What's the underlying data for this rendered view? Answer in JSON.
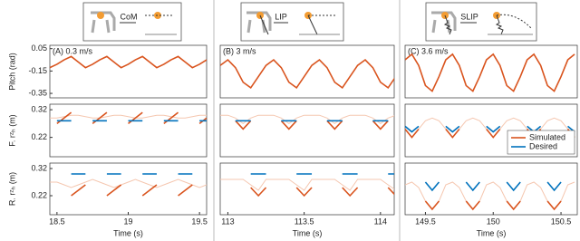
{
  "header": {
    "labels": [
      "CoM",
      "LIP",
      "SLIP"
    ]
  },
  "chart_data": [
    {
      "type": "line",
      "annotation": "(A) 0.3 m/s",
      "ylabel": "Pitch (rad)",
      "xlim": [
        18.45,
        19.55
      ],
      "ylim": [
        -0.39,
        0.08
      ],
      "yticks": [
        -0.35,
        -0.15,
        0.05
      ],
      "x": [
        18.45,
        18.5,
        18.55,
        18.6,
        18.65,
        18.7,
        18.75,
        18.8,
        18.85,
        18.9,
        18.95,
        19,
        19.05,
        19.1,
        19.15,
        19.2,
        19.25,
        19.3,
        19.35,
        19.4,
        19.45,
        19.5,
        19.55
      ],
      "series": [
        {
          "color": "#d9541e",
          "values": [
            -0.12,
            -0.09,
            -0.05,
            -0.02,
            -0.07,
            -0.12,
            -0.09,
            -0.05,
            -0.02,
            -0.07,
            -0.12,
            -0.09,
            -0.05,
            -0.02,
            -0.07,
            -0.12,
            -0.09,
            -0.05,
            -0.02,
            -0.07,
            -0.12,
            -0.09,
            -0.05
          ]
        }
      ]
    },
    {
      "type": "line",
      "annotation": "(B) 3 m/s",
      "xlim": [
        112.95,
        114.09
      ],
      "ylim": [
        -0.39,
        0.08
      ],
      "x": [
        112.95,
        113,
        113.05,
        113.1,
        113.15,
        113.2,
        113.25,
        113.3,
        113.35,
        113.4,
        113.45,
        113.5,
        113.55,
        113.6,
        113.65,
        113.7,
        113.75,
        113.8,
        113.85,
        113.9,
        113.95,
        114,
        114.05,
        114.1
      ],
      "series": [
        {
          "color": "#d9541e",
          "values": [
            -0.1,
            -0.05,
            -0.12,
            -0.25,
            -0.3,
            -0.2,
            -0.1,
            -0.05,
            -0.12,
            -0.25,
            -0.3,
            -0.2,
            -0.1,
            -0.05,
            -0.12,
            -0.25,
            -0.3,
            -0.2,
            -0.1,
            -0.05,
            -0.12,
            -0.25,
            -0.3,
            -0.2
          ]
        }
      ]
    },
    {
      "type": "line",
      "annotation": "(C) 3.6 m/s",
      "xlim": [
        149.35,
        150.62
      ],
      "ylim": [
        -0.39,
        0.08
      ],
      "x": [
        149.35,
        149.4,
        149.45,
        149.5,
        149.55,
        149.6,
        149.65,
        149.7,
        149.75,
        149.8,
        149.85,
        149.9,
        149.95,
        150,
        150.05,
        150.1,
        150.15,
        150.2,
        150.25,
        150.3,
        150.35,
        150.4,
        150.45,
        150.5,
        150.55,
        150.6
      ],
      "series": [
        {
          "color": "#d9541e",
          "values": [
            -0.05,
            0,
            -0.1,
            -0.28,
            -0.33,
            -0.2,
            -0.05,
            0,
            -0.1,
            -0.28,
            -0.33,
            -0.2,
            -0.05,
            0,
            -0.1,
            -0.28,
            -0.33,
            -0.2,
            -0.05,
            0,
            -0.1,
            -0.28,
            -0.33,
            -0.2,
            -0.05,
            0
          ]
        }
      ]
    },
    {
      "type": "line",
      "ylabel": "F. rᶻₕ (m)",
      "xlim": [
        18.45,
        19.55
      ],
      "ylim": [
        0.15,
        0.34
      ],
      "yticks": [
        0.22,
        0.32
      ],
      "x": [
        18.45,
        18.5,
        18.55,
        18.6,
        18.65,
        18.7,
        18.75,
        18.8,
        18.85,
        18.9,
        18.95,
        19,
        19.05,
        19.1,
        19.15,
        19.2,
        19.25,
        19.3,
        19.35,
        19.4,
        19.45,
        19.5,
        19.55
      ],
      "series": [
        {
          "color": "#f5c7b0",
          "values": [
            0.29,
            0.29,
            0.295,
            0.3,
            0.3,
            0.295,
            0.29,
            0.29,
            0.295,
            0.3,
            0.3,
            0.295,
            0.29,
            0.29,
            0.295,
            0.3,
            0.3,
            0.295,
            0.29,
            0.29,
            0.295,
            0.3,
            0.3
          ]
        },
        {
          "color": "#d9541e",
          "values": [
            null,
            0.27,
            0.29,
            0.31,
            null,
            null,
            0.27,
            0.29,
            0.31,
            null,
            null,
            0.27,
            0.29,
            0.31,
            null,
            null,
            0.27,
            0.29,
            0.31,
            null,
            null,
            0.27,
            0.29
          ]
        },
        {
          "color": "#0072bd",
          "values": [
            null,
            0.28,
            0.28,
            0.28,
            null,
            null,
            0.28,
            0.28,
            0.28,
            null,
            null,
            0.28,
            0.28,
            0.28,
            null,
            null,
            0.28,
            0.28,
            0.28,
            null,
            null,
            0.28,
            0.28
          ]
        }
      ]
    },
    {
      "type": "line",
      "xlim": [
        112.95,
        114.09
      ],
      "ylim": [
        0.15,
        0.34
      ],
      "x": [
        112.95,
        113,
        113.05,
        113.1,
        113.15,
        113.2,
        113.25,
        113.3,
        113.35,
        113.4,
        113.45,
        113.5,
        113.55,
        113.6,
        113.65,
        113.7,
        113.75,
        113.8,
        113.85,
        113.9,
        113.95,
        114,
        114.05,
        114.1
      ],
      "series": [
        {
          "color": "#f5c7b0",
          "values": [
            0.3,
            0.3,
            0.29,
            0.27,
            0.29,
            0.3,
            0.3,
            0.3,
            0.29,
            0.27,
            0.29,
            0.3,
            0.3,
            0.3,
            0.29,
            0.27,
            0.29,
            0.3,
            0.3,
            0.3,
            0.29,
            0.27,
            0.29,
            0.3
          ]
        },
        {
          "color": "#d9541e",
          "values": [
            null,
            null,
            0.28,
            0.25,
            0.28,
            null,
            null,
            null,
            0.28,
            0.25,
            0.28,
            null,
            null,
            null,
            0.28,
            0.25,
            0.28,
            null,
            null,
            null,
            0.28,
            0.25,
            0.28,
            null
          ]
        },
        {
          "color": "#0072bd",
          "values": [
            null,
            null,
            0.28,
            0.28,
            0.28,
            null,
            null,
            null,
            0.28,
            0.28,
            0.28,
            null,
            null,
            null,
            0.28,
            0.28,
            0.28,
            null,
            null,
            null,
            0.28,
            0.28,
            0.28,
            null
          ]
        }
      ]
    },
    {
      "type": "line",
      "xlim": [
        149.35,
        150.62
      ],
      "ylim": [
        0.15,
        0.34
      ],
      "legend": "lower right",
      "x": [
        149.35,
        149.4,
        149.45,
        149.5,
        149.55,
        149.6,
        149.65,
        149.7,
        149.75,
        149.8,
        149.85,
        149.9,
        149.95,
        150,
        150.05,
        150.1,
        150.15,
        150.2,
        150.25,
        150.3,
        150.35,
        150.4,
        150.45,
        150.5,
        150.55,
        150.6
      ],
      "series": [
        {
          "color": "#f5c7b0",
          "values": [
            0.25,
            0.22,
            0.25,
            0.28,
            0.29,
            0.28,
            0.25,
            0.22,
            0.25,
            0.28,
            0.29,
            0.28,
            0.25,
            0.22,
            0.25,
            0.28,
            0.29,
            0.28,
            0.25,
            0.22,
            0.25,
            0.28,
            0.29,
            0.28,
            0.25,
            0.22
          ]
        },
        {
          "name": "Simulated",
          "color": "#d9541e",
          "values": [
            0.25,
            0.22,
            0.25,
            null,
            null,
            null,
            0.25,
            0.22,
            0.25,
            null,
            null,
            null,
            0.25,
            0.22,
            0.25,
            null,
            null,
            null,
            0.25,
            0.22,
            0.25,
            null,
            null,
            null,
            0.25,
            0.22
          ]
        },
        {
          "name": "Desired",
          "color": "#0072bd",
          "values": [
            0.26,
            0.24,
            0.26,
            null,
            null,
            null,
            0.26,
            0.24,
            0.26,
            null,
            null,
            null,
            0.26,
            0.24,
            0.26,
            null,
            null,
            null,
            0.26,
            0.24,
            0.26,
            null,
            null,
            null,
            0.26,
            0.24
          ]
        }
      ]
    },
    {
      "type": "line",
      "ylabel": "R. rᶻₕ (m)",
      "xlabel": "Time (s)",
      "xlim": [
        18.45,
        19.55
      ],
      "ylim": [
        0.15,
        0.34
      ],
      "yticks": [
        0.22,
        0.32
      ],
      "xticks": [
        18.5,
        19,
        19.5
      ],
      "x": [
        18.45,
        18.5,
        18.55,
        18.6,
        18.65,
        18.7,
        18.75,
        18.8,
        18.85,
        18.9,
        18.95,
        19,
        19.05,
        19.1,
        19.15,
        19.2,
        19.25,
        19.3,
        19.35,
        19.4,
        19.45,
        19.5,
        19.55
      ],
      "series": [
        {
          "color": "#f5c7b0",
          "values": [
            0.27,
            0.27,
            0.26,
            0.25,
            0.26,
            0.27,
            0.28,
            0.27,
            0.26,
            0.25,
            0.26,
            0.27,
            0.28,
            0.27,
            0.26,
            0.25,
            0.26,
            0.27,
            0.28,
            0.27,
            0.26,
            0.25,
            0.26
          ]
        },
        {
          "color": "#d9541e",
          "values": [
            null,
            null,
            null,
            0.22,
            0.24,
            0.26,
            null,
            null,
            0.22,
            0.24,
            0.26,
            null,
            null,
            0.22,
            0.24,
            0.26,
            null,
            null,
            0.22,
            0.24,
            0.26,
            null,
            null
          ]
        },
        {
          "color": "#0072bd",
          "values": [
            null,
            null,
            null,
            0.3,
            0.3,
            0.3,
            null,
            null,
            0.3,
            0.3,
            0.3,
            null,
            null,
            0.3,
            0.3,
            0.3,
            null,
            null,
            0.3,
            0.3,
            0.3,
            null,
            null
          ]
        }
      ]
    },
    {
      "type": "line",
      "xlabel": "Time (s)",
      "xlim": [
        112.95,
        114.09
      ],
      "ylim": [
        0.15,
        0.34
      ],
      "xticks": [
        113,
        113.5,
        114
      ],
      "x": [
        112.95,
        113,
        113.05,
        113.1,
        113.15,
        113.2,
        113.25,
        113.3,
        113.35,
        113.4,
        113.45,
        113.5,
        113.55,
        113.6,
        113.65,
        113.7,
        113.75,
        113.8,
        113.85,
        113.9,
        113.95,
        114,
        114.05,
        114.1
      ],
      "series": [
        {
          "color": "#f5c7b0",
          "values": [
            0.28,
            0.28,
            0.28,
            0.28,
            0.26,
            0.24,
            0.28,
            0.28,
            0.28,
            0.28,
            0.26,
            0.24,
            0.28,
            0.28,
            0.28,
            0.28,
            0.26,
            0.24,
            0.28,
            0.28,
            0.28,
            0.28,
            0.26,
            0.24
          ]
        },
        {
          "color": "#d9541e",
          "values": [
            null,
            null,
            null,
            null,
            0.25,
            0.22,
            0.25,
            null,
            null,
            null,
            0.25,
            0.22,
            0.25,
            null,
            null,
            null,
            0.25,
            0.22,
            0.25,
            null,
            null,
            null,
            0.25,
            0.22
          ]
        },
        {
          "color": "#0072bd",
          "values": [
            null,
            null,
            null,
            null,
            0.3,
            0.3,
            0.3,
            null,
            null,
            null,
            0.3,
            0.3,
            0.3,
            null,
            null,
            null,
            0.3,
            0.3,
            0.3,
            null,
            null,
            null,
            0.3,
            0.3
          ]
        }
      ]
    },
    {
      "type": "line",
      "xlabel": "Time (s)",
      "xlim": [
        149.35,
        150.62
      ],
      "ylim": [
        0.15,
        0.34
      ],
      "xticks": [
        149.5,
        150,
        150.5
      ],
      "x": [
        149.35,
        149.4,
        149.45,
        149.5,
        149.55,
        149.6,
        149.65,
        149.7,
        149.75,
        149.8,
        149.85,
        149.9,
        149.95,
        150,
        150.05,
        150.1,
        150.15,
        150.2,
        150.25,
        150.3,
        150.35,
        150.4,
        150.45,
        150.5,
        150.55,
        150.6
      ],
      "series": [
        {
          "color": "#f5c7b0",
          "values": [
            0.26,
            0.27,
            0.25,
            0.2,
            0.17,
            0.2,
            0.26,
            0.27,
            0.25,
            0.2,
            0.17,
            0.2,
            0.26,
            0.27,
            0.25,
            0.2,
            0.17,
            0.2,
            0.26,
            0.27,
            0.25,
            0.2,
            0.17,
            0.2,
            0.26,
            0.27
          ]
        },
        {
          "color": "#d9541e",
          "values": [
            null,
            null,
            null,
            0.2,
            0.17,
            0.2,
            null,
            null,
            null,
            0.2,
            0.17,
            0.2,
            null,
            null,
            null,
            0.2,
            0.17,
            0.2,
            null,
            null,
            null,
            0.2,
            0.17,
            0.2,
            null,
            null
          ]
        },
        {
          "color": "#0072bd",
          "values": [
            null,
            null,
            null,
            0.27,
            0.24,
            0.27,
            null,
            null,
            null,
            0.27,
            0.24,
            0.27,
            null,
            null,
            null,
            0.27,
            0.24,
            0.27,
            null,
            null,
            null,
            0.27,
            0.24,
            0.27,
            null,
            null
          ]
        }
      ]
    }
  ]
}
